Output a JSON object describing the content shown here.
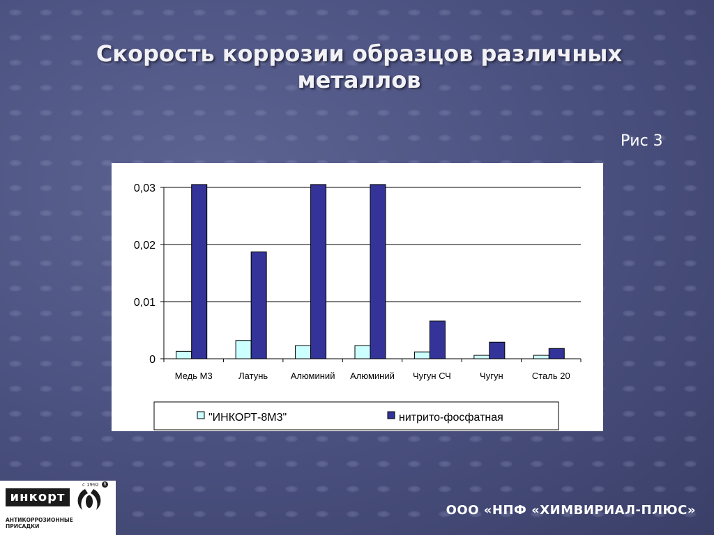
{
  "slide": {
    "title": "Скорость коррозии образцов различных металлов",
    "figure_label": "Рис 3",
    "company": "ООО «НПФ «ХИМВИРИАЛ-ПЛЮС»"
  },
  "logo": {
    "name": "инкорт",
    "year": "с 1992",
    "registered": "R",
    "subtitle_line1": "АНТИКОРРОЗИОННЫЕ",
    "subtitle_line2": "ПРИСАДКИ"
  },
  "chart_data": {
    "type": "bar",
    "categories": [
      "Медь М3",
      "Латунь",
      "Алюминий",
      "Алюминий",
      "Чугун СЧ",
      "Чугун",
      "Сталь 20"
    ],
    "series": [
      {
        "name": "\"ИНКОРТ-8М3\"",
        "color": "#ccffff",
        "values": [
          0.0013,
          0.0032,
          0.0023,
          0.0023,
          0.0012,
          0.0006,
          0.0006
        ]
      },
      {
        "name": "нитрито-фосфатная",
        "color": "#333399",
        "values": [
          0.0305,
          0.0187,
          0.0305,
          0.0305,
          0.0066,
          0.0029,
          0.0018
        ]
      }
    ],
    "y_ticks": [
      "0",
      "0,01",
      "0,02",
      "0,03"
    ],
    "ylim": [
      0,
      0.03
    ],
    "grid": true,
    "legend_position": "bottom"
  }
}
